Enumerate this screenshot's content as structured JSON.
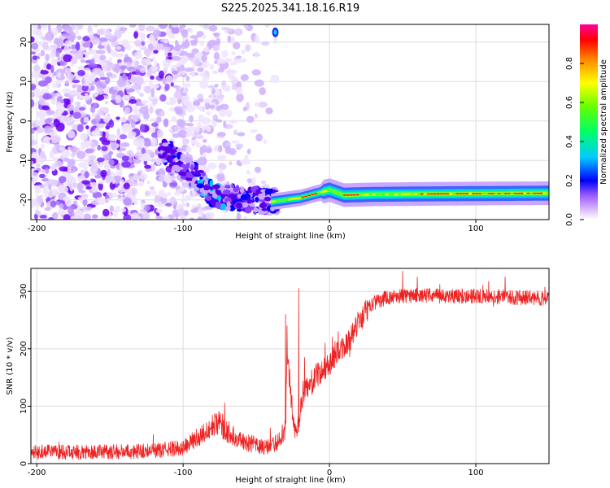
{
  "chart_data": [
    {
      "type": "heatmap",
      "title": "S225.2025.341.18.16.R19",
      "xlabel": "Height of straight line (km)",
      "ylabel": "Frequency (Hz)",
      "xlim": [
        -204,
        150
      ],
      "ylim": [
        -25,
        24.5
      ],
      "x_ticks": [
        -200,
        -100,
        0,
        100
      ],
      "x_tick_labels": [
        "-200",
        "-100",
        "0",
        "100"
      ],
      "y_ticks": [
        20,
        10,
        0,
        -10,
        -20
      ],
      "y_tick_labels": [
        "20",
        "10",
        "0",
        "-10",
        "-20"
      ],
      "grid": true,
      "colorbar": {
        "label": "Normalized spectral amplitude",
        "range": [
          0,
          1
        ],
        "ticks": [
          0.0,
          0.2,
          0.4,
          0.6,
          0.8
        ],
        "tick_labels": [
          "0.0",
          "0.2",
          "0.4",
          "0.6",
          "0.8"
        ],
        "colors": [
          "#ffffff",
          "#cc99ff",
          "#7a00ff",
          "#0000ff",
          "#00ffff",
          "#00ff00",
          "#ffff00",
          "#ff8800",
          "#ff0000",
          "#ff00aa"
        ]
      },
      "features": {
        "noise_x_range": [
          -204,
          -30
        ],
        "noise_density_edge_km": -105,
        "descending_arc": [
          [
            -110,
            -8
          ],
          [
            -95,
            -13
          ],
          [
            -80,
            -18.5
          ],
          [
            -65,
            -19.5
          ],
          [
            -45,
            -20.5
          ],
          [
            -30,
            -20
          ]
        ],
        "tone_line": [
          [
            -40,
            -20.5
          ],
          [
            -20,
            -19.5
          ],
          [
            -10,
            -18.5
          ],
          [
            0,
            -17.5
          ],
          [
            10,
            -18.8
          ],
          [
            30,
            -18.6
          ],
          [
            60,
            -18.5
          ],
          [
            100,
            -18.4
          ],
          [
            150,
            -18.3
          ]
        ],
        "tone_peak_x_km": [
          -14,
          15
        ],
        "isolated_blob": [
          -37,
          22.5
        ]
      }
    },
    {
      "type": "line",
      "title": "",
      "xlabel": "Height of straight line (km)",
      "ylabel": "SNR (10 * v/v)",
      "xlim": [
        -204,
        150
      ],
      "ylim": [
        0,
        340
      ],
      "x_ticks": [
        -200,
        -100,
        0,
        100
      ],
      "x_tick_labels": [
        "-200",
        "-100",
        "0",
        "100"
      ],
      "y_ticks": [
        0,
        100,
        200,
        300
      ],
      "y_tick_labels": [
        "0",
        "100",
        "200",
        "300"
      ],
      "grid": true,
      "series": [
        {
          "name": "SNR",
          "color": "#ee2222",
          "x": [
            -204,
            -180,
            -160,
            -140,
            -120,
            -100,
            -90,
            -80,
            -75,
            -70,
            -60,
            -50,
            -45,
            -40,
            -35,
            -30,
            -29,
            -28,
            -26,
            -24,
            -22,
            -20,
            -18,
            -15,
            -10,
            -5,
            0,
            5,
            10,
            15,
            20,
            25,
            30,
            40,
            50,
            60,
            80,
            100,
            120,
            150
          ],
          "values": [
            20,
            20,
            20,
            21,
            22,
            28,
            45,
            65,
            70,
            55,
            40,
            32,
            28,
            30,
            40,
            60,
            200,
            175,
            110,
            70,
            50,
            100,
            125,
            130,
            150,
            160,
            175,
            190,
            205,
            220,
            245,
            265,
            280,
            290,
            292,
            293,
            292,
            292,
            290,
            288
          ],
          "spikes": [
            [
              -30,
              260
            ],
            [
              -29,
              240
            ],
            [
              -21,
              305
            ],
            [
              -17,
              185
            ],
            [
              -3,
              210
            ],
            [
              2,
              220
            ],
            [
              6,
              230
            ],
            [
              50,
              335
            ],
            [
              60,
              325
            ],
            [
              120,
              325
            ]
          ]
        }
      ]
    }
  ]
}
